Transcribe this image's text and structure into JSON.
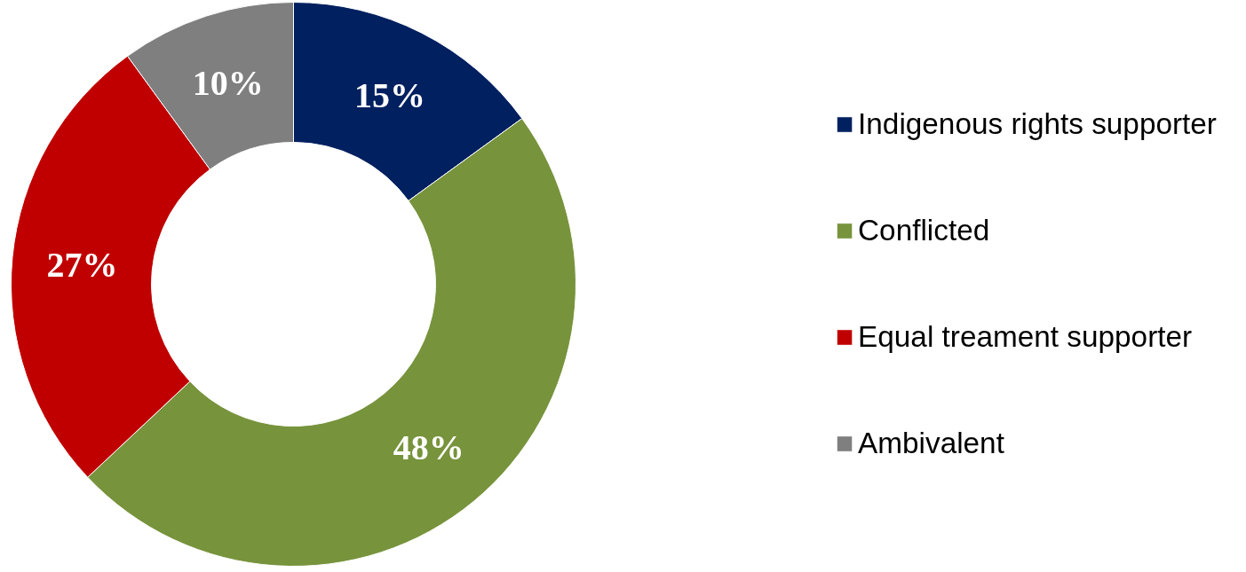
{
  "chart_data": {
    "type": "donut",
    "categories": [
      "Indigenous rights supporter",
      "Conflicted",
      "Equal treament supporter",
      "Ambivalent"
    ],
    "values": [
      15,
      48,
      27,
      10
    ],
    "colors": [
      "#002060",
      "#77933c",
      "#c00000",
      "#7f7f7f"
    ],
    "value_labels": [
      "15%",
      "48%",
      "27%",
      "10%"
    ],
    "legend": "right"
  }
}
